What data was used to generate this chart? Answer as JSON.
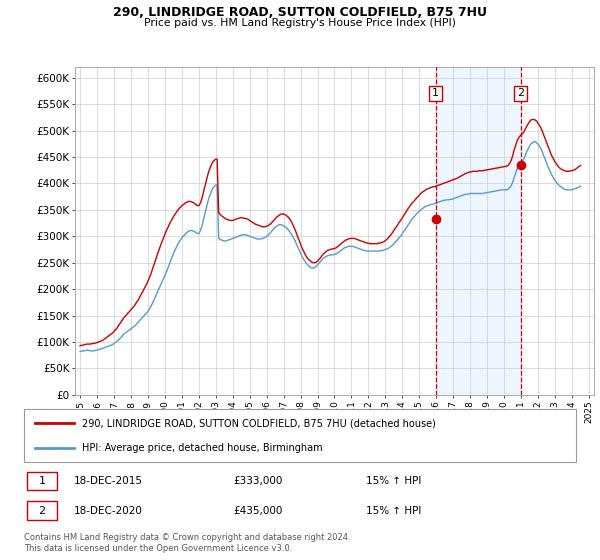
{
  "title": "290, LINDRIDGE ROAD, SUTTON COLDFIELD, B75 7HU",
  "subtitle": "Price paid vs. HM Land Registry's House Price Index (HPI)",
  "ylim": [
    0,
    620000
  ],
  "yticks": [
    0,
    50000,
    100000,
    150000,
    200000,
    250000,
    300000,
    350000,
    400000,
    450000,
    500000,
    550000,
    600000
  ],
  "ytick_labels": [
    "£0",
    "£50K",
    "£100K",
    "£150K",
    "£200K",
    "£250K",
    "£300K",
    "£350K",
    "£400K",
    "£450K",
    "£500K",
    "£550K",
    "£600K"
  ],
  "background_color": "#ffffff",
  "plot_background": "#ffffff",
  "grid_color": "#cccccc",
  "red_color": "#cc0000",
  "blue_color": "#5599cc",
  "blue_fill_color": "#ddeeff",
  "event1_year": 2015.97,
  "event1_value": 333000,
  "event2_year": 2020.97,
  "event2_value": 435000,
  "legend_entry1": "290, LINDRIDGE ROAD, SUTTON COLDFIELD, B75 7HU (detached house)",
  "legend_entry2": "HPI: Average price, detached house, Birmingham",
  "note1_label": "1",
  "note1_date": "18-DEC-2015",
  "note1_price": "£333,000",
  "note1_hpi": "15% ↑ HPI",
  "note2_label": "2",
  "note2_date": "18-DEC-2020",
  "note2_price": "£435,000",
  "note2_hpi": "15% ↑ HPI",
  "footer": "Contains HM Land Registry data © Crown copyright and database right 2024.\nThis data is licensed under the Open Government Licence v3.0.",
  "hpi_years": [
    1995.0,
    1995.08,
    1995.17,
    1995.25,
    1995.33,
    1995.42,
    1995.5,
    1995.58,
    1995.67,
    1995.75,
    1995.83,
    1995.92,
    1996.0,
    1996.08,
    1996.17,
    1996.25,
    1996.33,
    1996.42,
    1996.5,
    1996.58,
    1996.67,
    1996.75,
    1996.83,
    1996.92,
    1997.0,
    1997.08,
    1997.17,
    1997.25,
    1997.33,
    1997.42,
    1997.5,
    1997.58,
    1997.67,
    1997.75,
    1997.83,
    1997.92,
    1998.0,
    1998.08,
    1998.17,
    1998.25,
    1998.33,
    1998.42,
    1998.5,
    1998.58,
    1998.67,
    1998.75,
    1998.83,
    1998.92,
    1999.0,
    1999.08,
    1999.17,
    1999.25,
    1999.33,
    1999.42,
    1999.5,
    1999.58,
    1999.67,
    1999.75,
    1999.83,
    1999.92,
    2000.0,
    2000.08,
    2000.17,
    2000.25,
    2000.33,
    2000.42,
    2000.5,
    2000.58,
    2000.67,
    2000.75,
    2000.83,
    2000.92,
    2001.0,
    2001.08,
    2001.17,
    2001.25,
    2001.33,
    2001.42,
    2001.5,
    2001.58,
    2001.67,
    2001.75,
    2001.83,
    2001.92,
    2002.0,
    2002.08,
    2002.17,
    2002.25,
    2002.33,
    2002.42,
    2002.5,
    2002.58,
    2002.67,
    2002.75,
    2002.83,
    2002.92,
    2003.0,
    2003.08,
    2003.17,
    2003.25,
    2003.33,
    2003.42,
    2003.5,
    2003.58,
    2003.67,
    2003.75,
    2003.83,
    2003.92,
    2004.0,
    2004.08,
    2004.17,
    2004.25,
    2004.33,
    2004.42,
    2004.5,
    2004.58,
    2004.67,
    2004.75,
    2004.83,
    2004.92,
    2005.0,
    2005.08,
    2005.17,
    2005.25,
    2005.33,
    2005.42,
    2005.5,
    2005.58,
    2005.67,
    2005.75,
    2005.83,
    2005.92,
    2006.0,
    2006.08,
    2006.17,
    2006.25,
    2006.33,
    2006.42,
    2006.5,
    2006.58,
    2006.67,
    2006.75,
    2006.83,
    2006.92,
    2007.0,
    2007.08,
    2007.17,
    2007.25,
    2007.33,
    2007.42,
    2007.5,
    2007.58,
    2007.67,
    2007.75,
    2007.83,
    2007.92,
    2008.0,
    2008.08,
    2008.17,
    2008.25,
    2008.33,
    2008.42,
    2008.5,
    2008.58,
    2008.67,
    2008.75,
    2008.83,
    2008.92,
    2009.0,
    2009.08,
    2009.17,
    2009.25,
    2009.33,
    2009.42,
    2009.5,
    2009.58,
    2009.67,
    2009.75,
    2009.83,
    2009.92,
    2010.0,
    2010.08,
    2010.17,
    2010.25,
    2010.33,
    2010.42,
    2010.5,
    2010.58,
    2010.67,
    2010.75,
    2010.83,
    2010.92,
    2011.0,
    2011.08,
    2011.17,
    2011.25,
    2011.33,
    2011.42,
    2011.5,
    2011.58,
    2011.67,
    2011.75,
    2011.83,
    2011.92,
    2012.0,
    2012.08,
    2012.17,
    2012.25,
    2012.33,
    2012.42,
    2012.5,
    2012.58,
    2012.67,
    2012.75,
    2012.83,
    2012.92,
    2013.0,
    2013.08,
    2013.17,
    2013.25,
    2013.33,
    2013.42,
    2013.5,
    2013.58,
    2013.67,
    2013.75,
    2013.83,
    2013.92,
    2014.0,
    2014.08,
    2014.17,
    2014.25,
    2014.33,
    2014.42,
    2014.5,
    2014.58,
    2014.67,
    2014.75,
    2014.83,
    2014.92,
    2015.0,
    2015.08,
    2015.17,
    2015.25,
    2015.33,
    2015.42,
    2015.5,
    2015.58,
    2015.67,
    2015.75,
    2015.83,
    2015.92,
    2016.0,
    2016.08,
    2016.17,
    2016.25,
    2016.33,
    2016.42,
    2016.5,
    2016.58,
    2016.67,
    2016.75,
    2016.83,
    2016.92,
    2017.0,
    2017.08,
    2017.17,
    2017.25,
    2017.33,
    2017.42,
    2017.5,
    2017.58,
    2017.67,
    2017.75,
    2017.83,
    2017.92,
    2018.0,
    2018.08,
    2018.17,
    2018.25,
    2018.33,
    2018.42,
    2018.5,
    2018.58,
    2018.67,
    2018.75,
    2018.83,
    2018.92,
    2019.0,
    2019.08,
    2019.17,
    2019.25,
    2019.33,
    2019.42,
    2019.5,
    2019.58,
    2019.67,
    2019.75,
    2019.83,
    2019.92,
    2020.0,
    2020.08,
    2020.17,
    2020.25,
    2020.33,
    2020.42,
    2020.5,
    2020.58,
    2020.67,
    2020.75,
    2020.83,
    2020.92,
    2021.0,
    2021.08,
    2021.17,
    2021.25,
    2021.33,
    2021.42,
    2021.5,
    2021.58,
    2021.67,
    2021.75,
    2021.83,
    2021.92,
    2022.0,
    2022.08,
    2022.17,
    2022.25,
    2022.33,
    2022.42,
    2022.5,
    2022.58,
    2022.67,
    2022.75,
    2022.83,
    2022.92,
    2023.0,
    2023.08,
    2023.17,
    2023.25,
    2023.33,
    2023.42,
    2023.5,
    2023.58,
    2023.67,
    2023.75,
    2023.83,
    2023.92,
    2024.0,
    2024.08,
    2024.17,
    2024.25,
    2024.33,
    2024.42,
    2024.5
  ],
  "hpi_values": [
    82000,
    82500,
    83000,
    83500,
    84000,
    84500,
    84000,
    83500,
    83000,
    83000,
    83500,
    84000,
    85000,
    85500,
    86000,
    87000,
    88000,
    89000,
    90000,
    91000,
    92000,
    93000,
    94000,
    95000,
    97000,
    99000,
    101000,
    103000,
    106000,
    109000,
    112000,
    115000,
    117000,
    119000,
    121000,
    123000,
    125000,
    127000,
    129000,
    131000,
    134000,
    137000,
    140000,
    143000,
    146000,
    149000,
    152000,
    155000,
    158000,
    162000,
    167000,
    172000,
    178000,
    184000,
    190000,
    196000,
    202000,
    208000,
    214000,
    220000,
    226000,
    232000,
    239000,
    246000,
    253000,
    260000,
    267000,
    273000,
    279000,
    284000,
    289000,
    293000,
    297000,
    300000,
    303000,
    306000,
    308000,
    310000,
    311000,
    311000,
    310000,
    309000,
    307000,
    305000,
    305000,
    310000,
    318000,
    328000,
    339000,
    350000,
    361000,
    371000,
    379000,
    386000,
    391000,
    395000,
    397000,
    397000,
    296000,
    294000,
    293000,
    292000,
    291000,
    291000,
    292000,
    293000,
    294000,
    295000,
    296000,
    297000,
    298000,
    299000,
    300000,
    301000,
    302000,
    303000,
    303000,
    303000,
    302000,
    301000,
    300000,
    299000,
    298000,
    297000,
    296000,
    295000,
    295000,
    295000,
    295000,
    296000,
    297000,
    298000,
    300000,
    302000,
    305000,
    308000,
    311000,
    314000,
    317000,
    319000,
    321000,
    322000,
    322000,
    321000,
    320000,
    318000,
    316000,
    313000,
    310000,
    306000,
    302000,
    297000,
    292000,
    286000,
    280000,
    274000,
    268000,
    262000,
    257000,
    253000,
    249000,
    246000,
    243000,
    241000,
    240000,
    240000,
    241000,
    243000,
    246000,
    249000,
    252000,
    255000,
    258000,
    260000,
    262000,
    263000,
    264000,
    265000,
    265000,
    265000,
    266000,
    267000,
    268000,
    270000,
    272000,
    274000,
    276000,
    278000,
    279000,
    280000,
    281000,
    281000,
    281000,
    281000,
    280000,
    279000,
    278000,
    277000,
    276000,
    275000,
    274000,
    273000,
    273000,
    272000,
    272000,
    272000,
    272000,
    272000,
    272000,
    272000,
    272000,
    272000,
    272000,
    273000,
    273000,
    274000,
    275000,
    276000,
    277000,
    279000,
    281000,
    283000,
    286000,
    289000,
    292000,
    295000,
    298000,
    301000,
    305000,
    309000,
    313000,
    317000,
    321000,
    325000,
    329000,
    333000,
    336000,
    339000,
    342000,
    345000,
    348000,
    350000,
    352000,
    354000,
    356000,
    357000,
    358000,
    359000,
    360000,
    361000,
    361000,
    362000,
    363000,
    364000,
    365000,
    366000,
    367000,
    368000,
    368000,
    369000,
    369000,
    369000,
    370000,
    370000,
    371000,
    372000,
    373000,
    374000,
    375000,
    376000,
    377000,
    378000,
    379000,
    379000,
    380000,
    380000,
    381000,
    381000,
    381000,
    381000,
    381000,
    381000,
    381000,
    381000,
    381000,
    381000,
    382000,
    382000,
    383000,
    383000,
    384000,
    384000,
    385000,
    385000,
    386000,
    386000,
    387000,
    387000,
    388000,
    388000,
    388000,
    388000,
    388000,
    390000,
    392000,
    396000,
    402000,
    410000,
    418000,
    426000,
    432000,
    436000,
    439000,
    442000,
    447000,
    453000,
    460000,
    466000,
    471000,
    475000,
    477000,
    479000,
    479000,
    477000,
    474000,
    471000,
    466000,
    460000,
    453000,
    446000,
    439000,
    432000,
    426000,
    420000,
    415000,
    410000,
    406000,
    402000,
    399000,
    396000,
    394000,
    392000,
    390000,
    389000,
    388000,
    388000,
    388000,
    388000,
    388000,
    389000,
    390000,
    391000,
    392000,
    393000,
    395000
  ],
  "price_years": [
    1995.0,
    1995.08,
    1995.17,
    1995.25,
    1995.33,
    1995.42,
    1995.5,
    1995.58,
    1995.67,
    1995.75,
    1995.83,
    1995.92,
    1996.0,
    1996.08,
    1996.17,
    1996.25,
    1996.33,
    1996.42,
    1996.5,
    1996.58,
    1996.67,
    1996.75,
    1996.83,
    1996.92,
    1997.0,
    1997.08,
    1997.17,
    1997.25,
    1997.33,
    1997.42,
    1997.5,
    1997.58,
    1997.67,
    1997.75,
    1997.83,
    1997.92,
    1998.0,
    1998.08,
    1998.17,
    1998.25,
    1998.33,
    1998.42,
    1998.5,
    1998.58,
    1998.67,
    1998.75,
    1998.83,
    1998.92,
    1999.0,
    1999.08,
    1999.17,
    1999.25,
    1999.33,
    1999.42,
    1999.5,
    1999.58,
    1999.67,
    1999.75,
    1999.83,
    1999.92,
    2000.0,
    2000.08,
    2000.17,
    2000.25,
    2000.33,
    2000.42,
    2000.5,
    2000.58,
    2000.67,
    2000.75,
    2000.83,
    2000.92,
    2001.0,
    2001.08,
    2001.17,
    2001.25,
    2001.33,
    2001.42,
    2001.5,
    2001.58,
    2001.67,
    2001.75,
    2001.83,
    2001.92,
    2002.0,
    2002.08,
    2002.17,
    2002.25,
    2002.33,
    2002.42,
    2002.5,
    2002.58,
    2002.67,
    2002.75,
    2002.83,
    2002.92,
    2003.0,
    2003.08,
    2003.17,
    2003.25,
    2003.33,
    2003.42,
    2003.5,
    2003.58,
    2003.67,
    2003.75,
    2003.83,
    2003.92,
    2004.0,
    2004.08,
    2004.17,
    2004.25,
    2004.33,
    2004.42,
    2004.5,
    2004.58,
    2004.67,
    2004.75,
    2004.83,
    2004.92,
    2005.0,
    2005.08,
    2005.17,
    2005.25,
    2005.33,
    2005.42,
    2005.5,
    2005.58,
    2005.67,
    2005.75,
    2005.83,
    2005.92,
    2006.0,
    2006.08,
    2006.17,
    2006.25,
    2006.33,
    2006.42,
    2006.5,
    2006.58,
    2006.67,
    2006.75,
    2006.83,
    2006.92,
    2007.0,
    2007.08,
    2007.17,
    2007.25,
    2007.33,
    2007.42,
    2007.5,
    2007.58,
    2007.67,
    2007.75,
    2007.83,
    2007.92,
    2008.0,
    2008.08,
    2008.17,
    2008.25,
    2008.33,
    2008.42,
    2008.5,
    2008.58,
    2008.67,
    2008.75,
    2008.83,
    2008.92,
    2009.0,
    2009.08,
    2009.17,
    2009.25,
    2009.33,
    2009.42,
    2009.5,
    2009.58,
    2009.67,
    2009.75,
    2009.83,
    2009.92,
    2010.0,
    2010.08,
    2010.17,
    2010.25,
    2010.33,
    2010.42,
    2010.5,
    2010.58,
    2010.67,
    2010.75,
    2010.83,
    2010.92,
    2011.0,
    2011.08,
    2011.17,
    2011.25,
    2011.33,
    2011.42,
    2011.5,
    2011.58,
    2011.67,
    2011.75,
    2011.83,
    2011.92,
    2012.0,
    2012.08,
    2012.17,
    2012.25,
    2012.33,
    2012.42,
    2012.5,
    2012.58,
    2012.67,
    2012.75,
    2012.83,
    2012.92,
    2013.0,
    2013.08,
    2013.17,
    2013.25,
    2013.33,
    2013.42,
    2013.5,
    2013.58,
    2013.67,
    2013.75,
    2013.83,
    2013.92,
    2014.0,
    2014.08,
    2014.17,
    2014.25,
    2014.33,
    2014.42,
    2014.5,
    2014.58,
    2014.67,
    2014.75,
    2014.83,
    2014.92,
    2015.0,
    2015.08,
    2015.17,
    2015.25,
    2015.33,
    2015.42,
    2015.5,
    2015.58,
    2015.67,
    2015.75,
    2015.83,
    2015.92,
    2016.0,
    2016.08,
    2016.17,
    2016.25,
    2016.33,
    2016.42,
    2016.5,
    2016.58,
    2016.67,
    2016.75,
    2016.83,
    2016.92,
    2017.0,
    2017.08,
    2017.17,
    2017.25,
    2017.33,
    2017.42,
    2017.5,
    2017.58,
    2017.67,
    2017.75,
    2017.83,
    2017.92,
    2018.0,
    2018.08,
    2018.17,
    2018.25,
    2018.33,
    2018.42,
    2018.5,
    2018.58,
    2018.67,
    2018.75,
    2018.83,
    2018.92,
    2019.0,
    2019.08,
    2019.17,
    2019.25,
    2019.33,
    2019.42,
    2019.5,
    2019.58,
    2019.67,
    2019.75,
    2019.83,
    2019.92,
    2020.0,
    2020.08,
    2020.17,
    2020.25,
    2020.33,
    2020.42,
    2020.5,
    2020.58,
    2020.67,
    2020.75,
    2020.83,
    2020.92,
    2021.0,
    2021.08,
    2021.17,
    2021.25,
    2021.33,
    2021.42,
    2021.5,
    2021.58,
    2021.67,
    2021.75,
    2021.83,
    2021.92,
    2022.0,
    2022.08,
    2022.17,
    2022.25,
    2022.33,
    2022.42,
    2022.5,
    2022.58,
    2022.67,
    2022.75,
    2022.83,
    2022.92,
    2023.0,
    2023.08,
    2023.17,
    2023.25,
    2023.33,
    2023.42,
    2023.5,
    2023.58,
    2023.67,
    2023.75,
    2023.83,
    2023.92,
    2024.0,
    2024.08,
    2024.17,
    2024.25,
    2024.33,
    2024.42,
    2024.5
  ],
  "price_values": [
    93000,
    93500,
    94000,
    95000,
    95500,
    96000,
    96000,
    96000,
    96500,
    97000,
    97500,
    98000,
    99000,
    100000,
    101000,
    102000,
    103000,
    105000,
    107000,
    109000,
    111000,
    113000,
    115000,
    117000,
    120000,
    123000,
    126000,
    130000,
    134000,
    138000,
    142000,
    146000,
    149000,
    152000,
    155000,
    158000,
    161000,
    164000,
    167000,
    171000,
    175000,
    179000,
    184000,
    189000,
    194000,
    199000,
    204000,
    209000,
    215000,
    221000,
    228000,
    236000,
    244000,
    252000,
    260000,
    268000,
    276000,
    283000,
    290000,
    297000,
    304000,
    310000,
    316000,
    322000,
    327000,
    332000,
    337000,
    341000,
    345000,
    349000,
    352000,
    355000,
    358000,
    360000,
    362000,
    364000,
    365000,
    366000,
    366000,
    365000,
    364000,
    362000,
    360000,
    358000,
    358000,
    362000,
    370000,
    380000,
    391000,
    402000,
    413000,
    422000,
    430000,
    436000,
    441000,
    444000,
    446000,
    446000,
    345000,
    342000,
    339000,
    337000,
    335000,
    333000,
    332000,
    331000,
    330000,
    330000,
    330000,
    331000,
    332000,
    333000,
    334000,
    335000,
    335000,
    335000,
    334000,
    334000,
    333000,
    332000,
    330000,
    328000,
    326000,
    325000,
    323000,
    322000,
    321000,
    320000,
    319000,
    318000,
    318000,
    318000,
    319000,
    320000,
    322000,
    324000,
    327000,
    330000,
    333000,
    336000,
    338000,
    340000,
    342000,
    342000,
    342000,
    341000,
    339000,
    337000,
    334000,
    330000,
    325000,
    319000,
    313000,
    306000,
    299000,
    292000,
    285000,
    278000,
    272000,
    267000,
    262000,
    258000,
    255000,
    253000,
    251000,
    250000,
    250000,
    251000,
    253000,
    256000,
    259000,
    263000,
    266000,
    269000,
    271000,
    273000,
    274000,
    275000,
    276000,
    276000,
    277000,
    278000,
    280000,
    282000,
    284000,
    287000,
    289000,
    291000,
    293000,
    294000,
    295000,
    296000,
    296000,
    296000,
    296000,
    295000,
    294000,
    293000,
    292000,
    291000,
    290000,
    289000,
    288000,
    287000,
    287000,
    286000,
    286000,
    286000,
    286000,
    286000,
    286000,
    287000,
    287000,
    288000,
    289000,
    290000,
    292000,
    294000,
    297000,
    300000,
    303000,
    307000,
    311000,
    315000,
    319000,
    323000,
    327000,
    331000,
    335000,
    339000,
    344000,
    348000,
    352000,
    356000,
    360000,
    363000,
    366000,
    369000,
    372000,
    375000,
    378000,
    381000,
    383000,
    385000,
    387000,
    389000,
    390000,
    391000,
    392000,
    393000,
    394000,
    394000,
    395000,
    396000,
    397000,
    398000,
    399000,
    400000,
    401000,
    402000,
    403000,
    404000,
    405000,
    406000,
    407000,
    408000,
    409000,
    410000,
    412000,
    413000,
    415000,
    416000,
    418000,
    419000,
    420000,
    421000,
    422000,
    422000,
    423000,
    423000,
    423000,
    423000,
    424000,
    424000,
    424000,
    424000,
    425000,
    425000,
    426000,
    426000,
    427000,
    427000,
    428000,
    428000,
    429000,
    429000,
    430000,
    430000,
    431000,
    431000,
    432000,
    432000,
    433000,
    435000,
    438000,
    444000,
    452000,
    462000,
    471000,
    479000,
    485000,
    489000,
    492000,
    494000,
    498000,
    503000,
    508000,
    513000,
    517000,
    520000,
    521000,
    521000,
    520000,
    518000,
    514000,
    510000,
    505000,
    499000,
    492000,
    485000,
    478000,
    471000,
    464000,
    457000,
    451000,
    446000,
    441000,
    437000,
    433000,
    430000,
    428000,
    426000,
    425000,
    424000,
    423000,
    423000,
    423000,
    424000,
    424000,
    425000,
    426000,
    428000,
    430000,
    432000,
    434000
  ]
}
